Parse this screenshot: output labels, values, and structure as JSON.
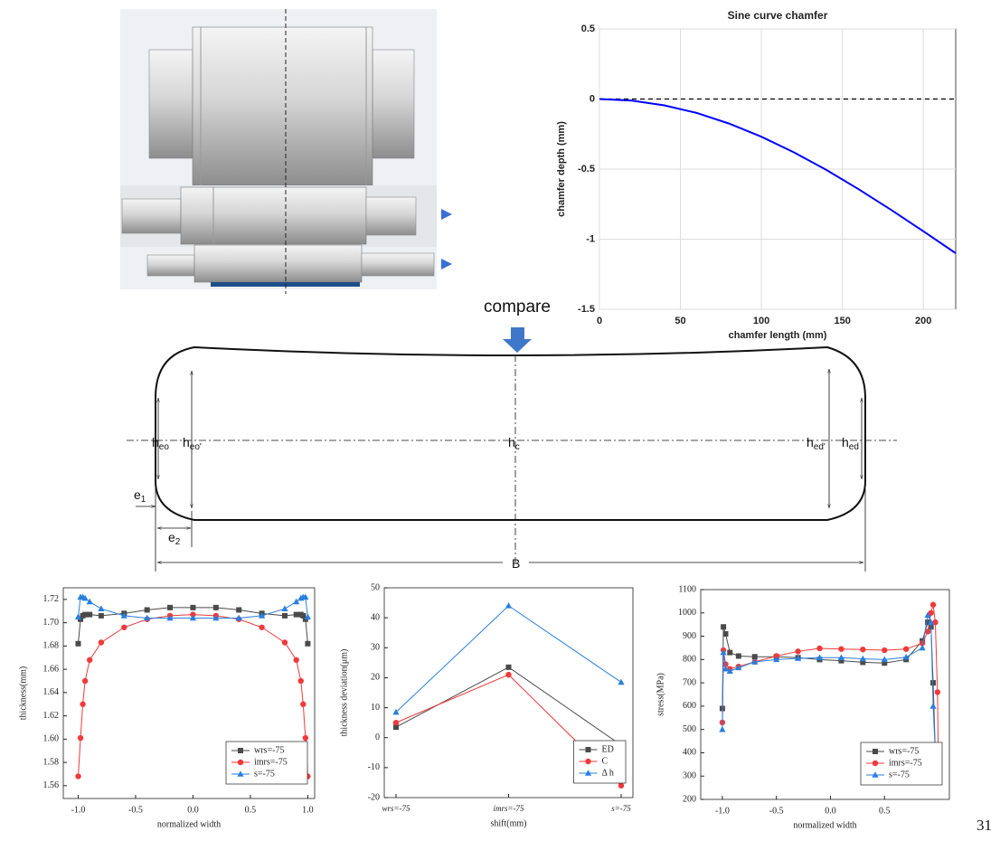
{
  "chart_data": [
    {
      "type": "line",
      "title": "Sine curve chamfer",
      "x_label": "chamfer length (mm)",
      "y_label": "chamfer depth (mm)",
      "x": [
        0,
        20,
        40,
        60,
        80,
        100,
        120,
        140,
        160,
        180,
        200,
        220
      ],
      "values": [
        0,
        -0.011,
        -0.045,
        -0.099,
        -0.175,
        -0.269,
        -0.38,
        -0.505,
        -0.643,
        -0.79,
        -0.943,
        -1.1
      ],
      "color": "#0000ff",
      "hline": 0,
      "xlim": [
        0,
        220
      ],
      "xticks": [
        0,
        50,
        100,
        150,
        200
      ],
      "ylim": [
        -1.5,
        0.5
      ],
      "yticks": [
        -1.5,
        -1,
        -0.5,
        0,
        0.5
      ],
      "grid": true
    },
    {
      "type": "line",
      "x_label": "normalized width",
      "y_label": "thickness(mm)",
      "x": [
        -1,
        -0.98,
        -0.96,
        -0.94,
        -0.9,
        -0.8,
        -0.6,
        -0.4,
        -0.2,
        0,
        0.2,
        0.4,
        0.6,
        0.8,
        0.9,
        0.94,
        0.96,
        0.98,
        1
      ],
      "series": [
        {
          "name": "wrs=-75",
          "color": "#4a4a4a",
          "marker": "square",
          "values": [
            1.682,
            1.703,
            1.706,
            1.707,
            1.707,
            1.706,
            1.708,
            1.711,
            1.713,
            1.713,
            1.713,
            1.711,
            1.708,
            1.706,
            1.707,
            1.707,
            1.706,
            1.703,
            1.682
          ]
        },
        {
          "name": "imrs=-75",
          "color": "#f03a3a",
          "marker": "circle",
          "values": [
            1.568,
            1.601,
            1.63,
            1.65,
            1.668,
            1.683,
            1.696,
            1.703,
            1.706,
            1.707,
            1.706,
            1.703,
            1.696,
            1.683,
            1.668,
            1.65,
            1.63,
            1.601,
            1.568
          ]
        },
        {
          "name": "s=-75",
          "color": "#2a7fe0",
          "marker": "triangle",
          "values": [
            1.705,
            1.722,
            1.722,
            1.721,
            1.718,
            1.712,
            1.706,
            1.704,
            1.704,
            1.704,
            1.704,
            1.704,
            1.706,
            1.712,
            1.718,
            1.721,
            1.722,
            1.722,
            1.705
          ]
        }
      ],
      "xlim": [
        -1.13,
        1.06
      ],
      "xticks": [
        {
          "value": -1,
          "label": "-1.0"
        },
        -0.5,
        {
          "value": 0,
          "label": "0.0"
        },
        0.5,
        {
          "value": 1,
          "label": "1.0"
        }
      ],
      "ylim": [
        1.549,
        1.73
      ],
      "yticks": [
        1.56,
        1.58,
        {
          "value": 1.6,
          "label": "1.60"
        },
        1.62,
        1.64,
        1.66,
        1.68,
        {
          "value": 1.7,
          "label": "1.70"
        },
        1.72
      ],
      "legend": "lower right"
    },
    {
      "type": "line",
      "x_label": "shift(mm)",
      "y_label": "thickness deviation(μm)",
      "categories": [
        "wrs=-75",
        "imrs=-75",
        "s=-75"
      ],
      "series": [
        {
          "name": "ED",
          "color": "#4a4a4a",
          "marker": "square",
          "values": [
            3.5,
            23.5,
            -2.5
          ]
        },
        {
          "name": "C",
          "color": "#f03a3a",
          "marker": "circle",
          "values": [
            5,
            21,
            -16
          ]
        },
        {
          "name": "Δ h",
          "color": "#2a7fe0",
          "marker": "triangle",
          "values": [
            8.5,
            44,
            18.5
          ]
        }
      ],
      "ylim": [
        -20,
        50
      ],
      "yticks": [
        -20,
        -10,
        0,
        10,
        20,
        30,
        40,
        50
      ],
      "legend": "lower right"
    },
    {
      "type": "line",
      "x_label": "normalized width",
      "y_label": "stress(MPa)",
      "x": [
        -1,
        -0.99,
        -0.97,
        -0.93,
        -0.85,
        -0.7,
        -0.5,
        -0.3,
        -0.1,
        0.1,
        0.3,
        0.5,
        0.7,
        0.85,
        0.9,
        0.93,
        0.95,
        0.97,
        0.99,
        1
      ],
      "series": [
        {
          "name": "wrs=-75",
          "color": "#4a4a4a",
          "marker": "square",
          "values": [
            590,
            940,
            910,
            830,
            815,
            812,
            812,
            808,
            800,
            795,
            788,
            785,
            800,
            880,
            960,
            940,
            700,
            400,
            300,
            280
          ]
        },
        {
          "name": "imrs=-75",
          "color": "#f03a3a",
          "marker": "circle",
          "values": [
            530,
            840,
            780,
            760,
            770,
            790,
            815,
            835,
            848,
            845,
            843,
            840,
            845,
            870,
            920,
            1000,
            1035,
            960,
            660,
            300
          ]
        },
        {
          "name": "s=-75",
          "color": "#2a7fe0",
          "marker": "triangle",
          "values": [
            500,
            830,
            760,
            750,
            765,
            790,
            800,
            805,
            808,
            808,
            803,
            800,
            810,
            850,
            990,
            960,
            600,
            400,
            300,
            280
          ]
        }
      ],
      "xlim": [
        -1.2,
        1.1
      ],
      "xticks": [
        {
          "value": -1,
          "label": "-1.0"
        },
        -0.5,
        {
          "value": 0,
          "label": "0.0"
        },
        0.5
      ],
      "ylim": [
        200,
        1100
      ],
      "yticks": [
        200,
        300,
        400,
        500,
        600,
        700,
        800,
        900,
        1000,
        1100
      ],
      "legend": "lower right"
    }
  ],
  "diagram": {
    "compare": "compare",
    "labels": [
      {
        "main": "h",
        "sub": "eo"
      },
      {
        "main": "h",
        "sub": "eo'"
      },
      {
        "main": "h",
        "sub": "c"
      },
      {
        "main": "h",
        "sub": "ed'"
      },
      {
        "main": "h",
        "sub": "ed"
      },
      {
        "main": "e",
        "sub": "1"
      },
      {
        "main": "e",
        "sub": "2"
      },
      {
        "main": "B"
      }
    ]
  },
  "page_number": "31"
}
